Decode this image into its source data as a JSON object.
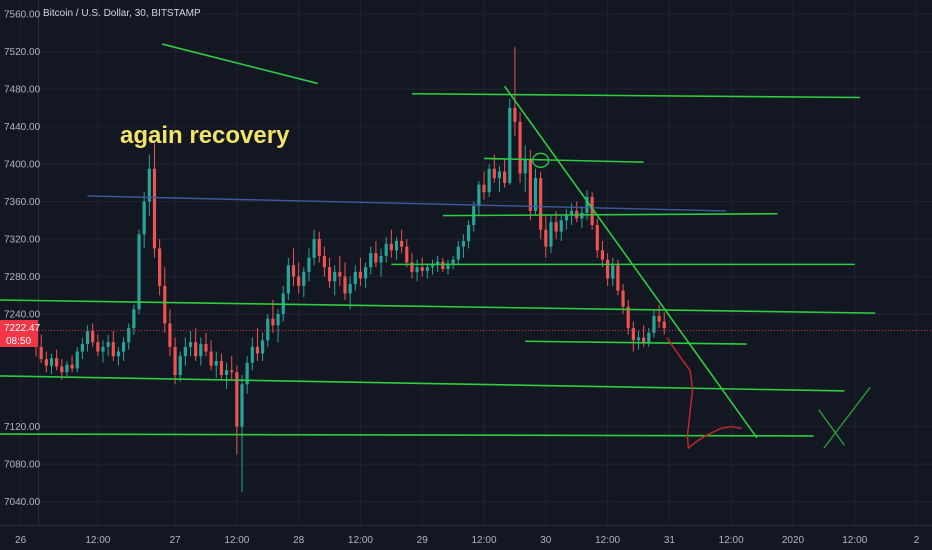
{
  "chart_data": {
    "type": "candlestick",
    "title": "Bitcoin / U.S. Dollar, 30, BITSTAMP",
    "ylim": [
      7015,
      7575
    ],
    "xlim": [
      -7,
      174
    ],
    "y_ticks": [
      {
        "value": 7560,
        "label": "7560.00"
      },
      {
        "value": 7520,
        "label": "7520.00"
      },
      {
        "value": 7480,
        "label": "7480.00"
      },
      {
        "value": 7440,
        "label": "7440.00"
      },
      {
        "value": 7400,
        "label": "7400.00"
      },
      {
        "value": 7360,
        "label": "7360.00"
      },
      {
        "value": 7320,
        "label": "7320.00"
      },
      {
        "value": 7280,
        "label": "7280.00"
      },
      {
        "value": 7240,
        "label": "7240.00"
      },
      {
        "value": 7120,
        "label": "7120.00"
      },
      {
        "value": 7080,
        "label": "7080.00"
      },
      {
        "value": 7040,
        "label": "7040.00"
      }
    ],
    "x_ticks": [
      {
        "value": -3,
        "label": "26"
      },
      {
        "value": 12,
        "label": "12:00"
      },
      {
        "value": 27,
        "label": "27"
      },
      {
        "value": 39,
        "label": "12:00"
      },
      {
        "value": 51,
        "label": "28"
      },
      {
        "value": 63,
        "label": "12:00"
      },
      {
        "value": 75,
        "label": "29"
      },
      {
        "value": 87,
        "label": "12:00"
      },
      {
        "value": 99,
        "label": "30"
      },
      {
        "value": 111,
        "label": "12:00"
      },
      {
        "value": 123,
        "label": "31"
      },
      {
        "value": 135,
        "label": "12:00"
      },
      {
        "value": 147,
        "label": "2020"
      },
      {
        "value": 159,
        "label": "12:00"
      },
      {
        "value": 171,
        "label": "2"
      }
    ],
    "current_price": {
      "value": 7222.47,
      "label": "7222.47",
      "countdown": "08:50"
    },
    "annotation": "again recovery",
    "candles": [
      [
        7213,
        7230,
        7195,
        7205
      ],
      [
        7205,
        7218,
        7188,
        7192
      ],
      [
        7192,
        7200,
        7178,
        7185
      ],
      [
        7185,
        7198,
        7176,
        7193
      ],
      [
        7193,
        7202,
        7180,
        7184
      ],
      [
        7184,
        7192,
        7170,
        7178
      ],
      [
        7178,
        7190,
        7172,
        7186
      ],
      [
        7186,
        7196,
        7178,
        7182
      ],
      [
        7182,
        7205,
        7178,
        7200
      ],
      [
        7200,
        7215,
        7192,
        7208
      ],
      [
        7208,
        7228,
        7200,
        7222
      ],
      [
        7222,
        7230,
        7205,
        7210
      ],
      [
        7210,
        7218,
        7195,
        7200
      ],
      [
        7200,
        7212,
        7188,
        7205
      ],
      [
        7205,
        7218,
        7195,
        7210
      ],
      [
        7210,
        7222,
        7190,
        7195
      ],
      [
        7195,
        7205,
        7185,
        7200
      ],
      [
        7200,
        7215,
        7190,
        7210
      ],
      [
        7210,
        7230,
        7202,
        7225
      ],
      [
        7225,
        7250,
        7218,
        7245
      ],
      [
        7245,
        7330,
        7240,
        7325
      ],
      [
        7325,
        7370,
        7310,
        7360
      ],
      [
        7360,
        7410,
        7345,
        7395
      ],
      [
        7395,
        7425,
        7300,
        7310
      ],
      [
        7310,
        7320,
        7260,
        7270
      ],
      [
        7270,
        7290,
        7220,
        7230
      ],
      [
        7230,
        7245,
        7195,
        7205
      ],
      [
        7205,
        7215,
        7165,
        7175
      ],
      [
        7175,
        7200,
        7168,
        7195
      ],
      [
        7195,
        7215,
        7185,
        7205
      ],
      [
        7205,
        7222,
        7195,
        7210
      ],
      [
        7210,
        7225,
        7190,
        7195
      ],
      [
        7195,
        7215,
        7185,
        7208
      ],
      [
        7208,
        7220,
        7195,
        7200
      ],
      [
        7200,
        7212,
        7180,
        7185
      ],
      [
        7185,
        7200,
        7172,
        7190
      ],
      [
        7190,
        7198,
        7170,
        7175
      ],
      [
        7175,
        7188,
        7160,
        7180
      ],
      [
        7180,
        7195,
        7170,
        7178
      ],
      [
        7178,
        7185,
        7090,
        7120
      ],
      [
        7120,
        7175,
        7050,
        7165
      ],
      [
        7165,
        7195,
        7155,
        7188
      ],
      [
        7188,
        7215,
        7180,
        7205
      ],
      [
        7205,
        7225,
        7190,
        7198
      ],
      [
        7198,
        7220,
        7190,
        7212
      ],
      [
        7212,
        7240,
        7205,
        7235
      ],
      [
        7235,
        7255,
        7220,
        7228
      ],
      [
        7228,
        7245,
        7210,
        7240
      ],
      [
        7240,
        7270,
        7232,
        7262
      ],
      [
        7262,
        7300,
        7255,
        7292
      ],
      [
        7292,
        7310,
        7270,
        7280
      ],
      [
        7280,
        7295,
        7262,
        7270
      ],
      [
        7270,
        7290,
        7258,
        7285
      ],
      [
        7285,
        7310,
        7275,
        7300
      ],
      [
        7300,
        7330,
        7292,
        7320
      ],
      [
        7320,
        7328,
        7295,
        7302
      ],
      [
        7302,
        7312,
        7280,
        7290
      ],
      [
        7290,
        7300,
        7268,
        7275
      ],
      [
        7275,
        7292,
        7260,
        7285
      ],
      [
        7285,
        7302,
        7270,
        7280
      ],
      [
        7280,
        7295,
        7255,
        7262
      ],
      [
        7262,
        7280,
        7245,
        7272
      ],
      [
        7272,
        7292,
        7265,
        7285
      ],
      [
        7285,
        7300,
        7270,
        7278
      ],
      [
        7278,
        7295,
        7268,
        7290
      ],
      [
        7290,
        7312,
        7282,
        7305
      ],
      [
        7305,
        7318,
        7290,
        7295
      ],
      [
        7295,
        7310,
        7280,
        7302
      ],
      [
        7302,
        7322,
        7295,
        7315
      ],
      [
        7315,
        7330,
        7300,
        7308
      ],
      [
        7308,
        7322,
        7298,
        7318
      ],
      [
        7318,
        7330,
        7305,
        7312
      ],
      [
        7312,
        7320,
        7290,
        7295
      ],
      [
        7295,
        7305,
        7278,
        7285
      ],
      [
        7285,
        7298,
        7275,
        7290
      ],
      [
        7290,
        7300,
        7280,
        7286
      ],
      [
        7286,
        7294,
        7278,
        7290
      ],
      [
        7290,
        7298,
        7282,
        7292
      ],
      [
        7292,
        7302,
        7285,
        7296
      ],
      [
        7296,
        7300,
        7285,
        7288
      ],
      [
        7288,
        7298,
        7282,
        7294
      ],
      [
        7294,
        7302,
        7288,
        7298
      ],
      [
        7298,
        7318,
        7292,
        7312
      ],
      [
        7312,
        7325,
        7300,
        7318
      ],
      [
        7318,
        7340,
        7310,
        7335
      ],
      [
        7335,
        7360,
        7328,
        7355
      ],
      [
        7355,
        7382,
        7345,
        7378
      ],
      [
        7378,
        7392,
        7362,
        7370
      ],
      [
        7370,
        7400,
        7365,
        7395
      ],
      [
        7395,
        7410,
        7380,
        7385
      ],
      [
        7385,
        7398,
        7370,
        7392
      ],
      [
        7392,
        7405,
        7375,
        7380
      ],
      [
        7380,
        7470,
        7378,
        7460
      ],
      [
        7460,
        7525,
        7430,
        7445
      ],
      [
        7445,
        7455,
        7380,
        7390
      ],
      [
        7390,
        7420,
        7370,
        7405
      ],
      [
        7405,
        7415,
        7340,
        7350
      ],
      [
        7350,
        7395,
        7345,
        7385
      ],
      [
        7385,
        7392,
        7320,
        7330
      ],
      [
        7330,
        7345,
        7300,
        7312
      ],
      [
        7312,
        7345,
        7305,
        7338
      ],
      [
        7338,
        7350,
        7320,
        7328
      ],
      [
        7328,
        7345,
        7318,
        7340
      ],
      [
        7340,
        7352,
        7330,
        7345
      ],
      [
        7345,
        7358,
        7335,
        7350
      ],
      [
        7350,
        7360,
        7338,
        7342
      ],
      [
        7342,
        7355,
        7332,
        7348
      ],
      [
        7348,
        7372,
        7340,
        7365
      ],
      [
        7365,
        7370,
        7330,
        7335
      ],
      [
        7335,
        7342,
        7300,
        7308
      ],
      [
        7308,
        7318,
        7290,
        7298
      ],
      [
        7298,
        7305,
        7270,
        7278
      ],
      [
        7278,
        7300,
        7270,
        7292
      ],
      [
        7292,
        7298,
        7260,
        7265
      ],
      [
        7265,
        7272,
        7240,
        7248
      ],
      [
        7248,
        7255,
        7218,
        7225
      ],
      [
        7225,
        7232,
        7200,
        7212
      ],
      [
        7212,
        7222,
        7202,
        7215
      ],
      [
        7215,
        7228,
        7205,
        7210
      ],
      [
        7210,
        7225,
        7205,
        7220
      ],
      [
        7220,
        7245,
        7215,
        7238
      ],
      [
        7238,
        7250,
        7225,
        7232
      ],
      [
        7232,
        7242,
        7218,
        7225
      ]
    ],
    "trend_lines": [
      {
        "points": [
          [
            24.5,
            7528
          ],
          [
            54.7,
            7486
          ]
        ]
      },
      {
        "points": [
          [
            73,
            7475
          ],
          [
            160,
            7471
          ]
        ]
      },
      {
        "points": [
          [
            87,
            7406
          ],
          [
            118,
            7402
          ]
        ]
      },
      {
        "points": [
          [
            79,
            7345
          ],
          [
            144,
            7347
          ]
        ]
      },
      {
        "points": [
          [
            69,
            7293
          ],
          [
            159,
            7293
          ]
        ]
      },
      {
        "points": [
          [
            -7,
            7255
          ],
          [
            163,
            7241
          ]
        ]
      },
      {
        "points": [
          [
            95,
            7211
          ],
          [
            138,
            7208
          ]
        ]
      },
      {
        "points": [
          [
            -7,
            7174
          ],
          [
            157,
            7158
          ]
        ]
      },
      {
        "points": [
          [
            -7,
            7112
          ],
          [
            151,
            7110
          ]
        ]
      },
      {
        "points": [
          [
            91,
            7483
          ],
          [
            140,
            7108
          ]
        ]
      }
    ],
    "blue_line": {
      "points": [
        [
          10,
          7366
        ],
        [
          134,
          7350
        ]
      ]
    },
    "projection": {
      "points": [
        [
          122.5,
          7215
        ],
        [
          125,
          7195
        ],
        [
          127,
          7180
        ],
        [
          127.5,
          7160
        ],
        [
          127,
          7135
        ],
        [
          126.5,
          7110
        ],
        [
          126.7,
          7097
        ],
        [
          128,
          7103
        ],
        [
          130,
          7110
        ],
        [
          133,
          7118
        ],
        [
          135,
          7120
        ],
        [
          137,
          7118
        ]
      ]
    },
    "circle": {
      "x": 98,
      "y": 7404
    },
    "x_mark": [
      [
        [
          152,
          7138
        ],
        [
          157,
          7100
        ]
      ],
      [
        [
          153,
          7097
        ],
        [
          162,
          7162
        ]
      ]
    ]
  }
}
